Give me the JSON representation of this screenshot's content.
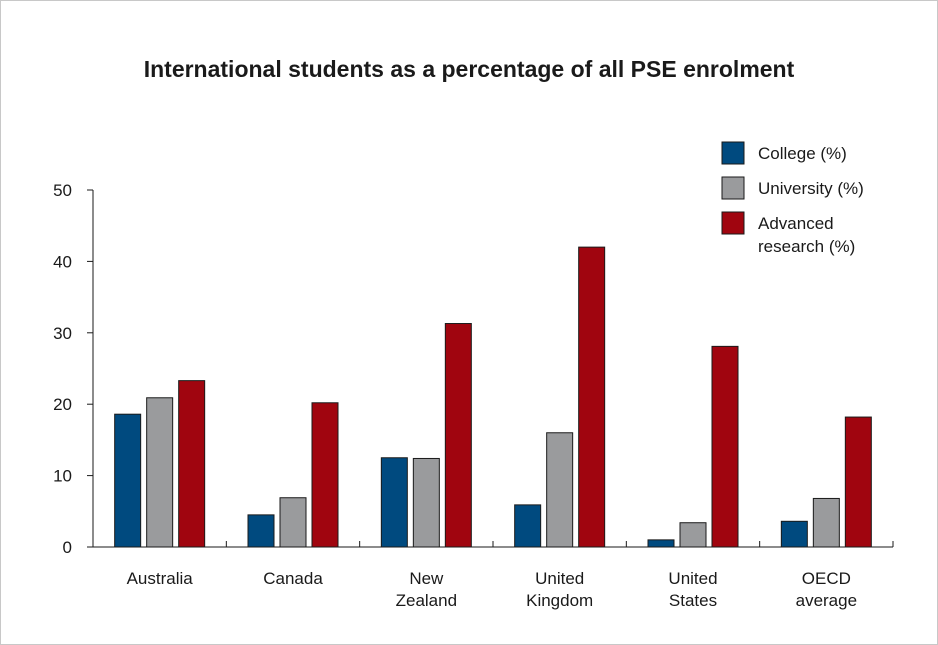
{
  "chart_data": {
    "type": "bar",
    "title": "International students as a percentage of all PSE enrolment",
    "categories": [
      [
        "Australia"
      ],
      [
        "Canada"
      ],
      [
        "New",
        "Zealand"
      ],
      [
        "United",
        "Kingdom"
      ],
      [
        "United",
        "States"
      ],
      [
        "OECD",
        "average"
      ]
    ],
    "series": [
      {
        "name": [
          "College (%)"
        ],
        "color": "#004a7f",
        "values": [
          18.6,
          4.5,
          12.5,
          5.9,
          1.0,
          3.6
        ]
      },
      {
        "name": [
          "University (%)"
        ],
        "color": "#9a9b9d",
        "values": [
          20.9,
          6.9,
          12.4,
          16.0,
          3.4,
          6.8
        ]
      },
      {
        "name": [
          "Advanced",
          "research (%)"
        ],
        "color": "#a0050f",
        "values": [
          23.3,
          20.2,
          31.3,
          42.0,
          28.1,
          18.2
        ]
      }
    ],
    "ylim": [
      0,
      50
    ],
    "yticks": [
      0,
      10,
      20,
      30,
      40,
      50
    ],
    "grid": false,
    "legend": "top-right",
    "xlabel": "",
    "ylabel": ""
  }
}
